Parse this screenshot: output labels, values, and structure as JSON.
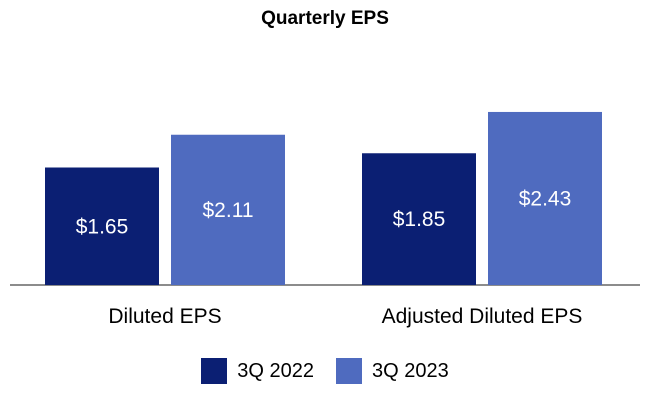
{
  "chart_data": {
    "type": "bar",
    "title": "Quarterly EPS",
    "categories": [
      "Diluted EPS",
      "Adjusted Diluted EPS"
    ],
    "series": [
      {
        "name": "3Q 2022",
        "values": [
          1.65,
          1.85
        ],
        "labels": [
          "$1.65",
          "$1.85"
        ],
        "color": "#0b1f73"
      },
      {
        "name": "3Q 2023",
        "values": [
          2.11,
          2.43
        ],
        "labels": [
          "$2.11",
          "$2.43"
        ],
        "color": "#4f6bbf"
      }
    ],
    "ylim": [
      0,
      3.3
    ],
    "grid": false,
    "legend_position": "bottom",
    "xlabel": "",
    "ylabel": ""
  }
}
